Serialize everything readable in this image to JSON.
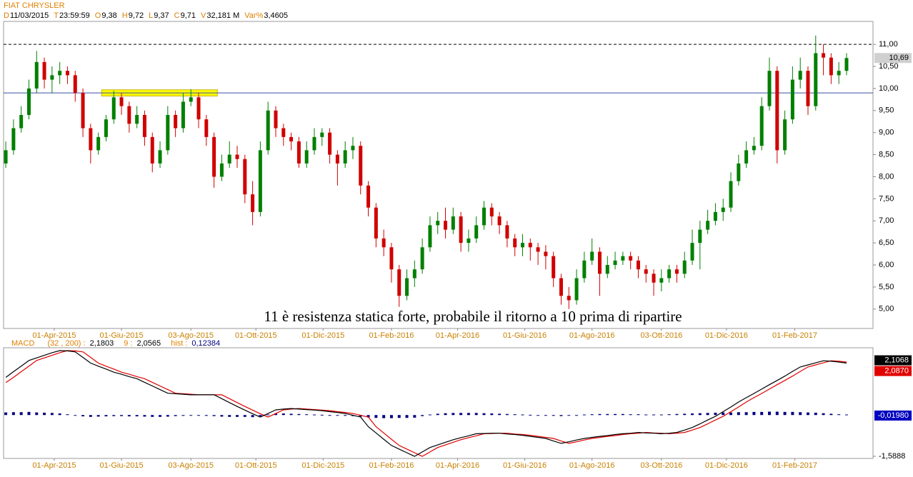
{
  "header": {
    "title": "FIAT CHRYSLER",
    "fields": [
      {
        "key": "D",
        "value": "11/03/2015"
      },
      {
        "key": "T",
        "value": "23:59:59"
      },
      {
        "key": "O",
        "value": "9,38"
      },
      {
        "key": "H",
        "value": "9,72"
      },
      {
        "key": "L",
        "value": "9,37"
      },
      {
        "key": "C",
        "value": "9,71"
      },
      {
        "key": "V",
        "value": "32,181 M"
      },
      {
        "key": "Var%",
        "value": "3,4605"
      }
    ]
  },
  "chart_data": [
    {
      "type": "candlestick",
      "annotation": "11 è resistenza statica forte, probabile il ritorno a 10 prima di ripartire",
      "up_color": "#008000",
      "down_color": "#d00000",
      "x": [
        "2015-02-16",
        "2015-02-23",
        "2015-03-02",
        "2015-03-09",
        "2015-03-16",
        "2015-03-23",
        "2015-03-30",
        "2015-04-06",
        "2015-04-13",
        "2015-04-20",
        "2015-04-27",
        "2015-05-04",
        "2015-05-11",
        "2015-05-18",
        "2015-05-25",
        "2015-06-01",
        "2015-06-08",
        "2015-06-15",
        "2015-06-22",
        "2015-06-29",
        "2015-07-06",
        "2015-07-13",
        "2015-07-20",
        "2015-07-27",
        "2015-08-03",
        "2015-08-10",
        "2015-08-17",
        "2015-08-24",
        "2015-08-31",
        "2015-09-07",
        "2015-09-14",
        "2015-09-21",
        "2015-09-28",
        "2015-10-05",
        "2015-10-12",
        "2015-10-19",
        "2015-10-26",
        "2015-11-02",
        "2015-11-09",
        "2015-11-16",
        "2015-11-23",
        "2015-11-30",
        "2015-12-07",
        "2015-12-14",
        "2015-12-21",
        "2015-12-28",
        "2016-01-04",
        "2016-01-11",
        "2016-01-18",
        "2016-01-25",
        "2016-02-01",
        "2016-02-08",
        "2016-02-15",
        "2016-02-22",
        "2016-02-29",
        "2016-03-07",
        "2016-03-14",
        "2016-03-21",
        "2016-03-28",
        "2016-04-04",
        "2016-04-11",
        "2016-04-18",
        "2016-04-25",
        "2016-05-02",
        "2016-05-09",
        "2016-05-16",
        "2016-05-23",
        "2016-05-30",
        "2016-06-06",
        "2016-06-13",
        "2016-06-20",
        "2016-06-27",
        "2016-07-04",
        "2016-07-11",
        "2016-07-18",
        "2016-07-25",
        "2016-08-01",
        "2016-08-08",
        "2016-08-15",
        "2016-08-22",
        "2016-08-29",
        "2016-09-05",
        "2016-09-12",
        "2016-09-19",
        "2016-09-26",
        "2016-10-03",
        "2016-10-10",
        "2016-10-17",
        "2016-10-24",
        "2016-10-31",
        "2016-11-07",
        "2016-11-14",
        "2016-11-21",
        "2016-11-28",
        "2016-12-05",
        "2016-12-12",
        "2016-12-19",
        "2016-12-26",
        "2017-01-02",
        "2017-01-09",
        "2017-01-16",
        "2017-01-23",
        "2017-01-30",
        "2017-02-06",
        "2017-02-13",
        "2017-02-20",
        "2017-02-27",
        "2017-03-06",
        "2017-03-13",
        "2017-03-20"
      ],
      "open": [
        8.3,
        8.6,
        9.1,
        9.4,
        10.0,
        10.6,
        10.2,
        10.3,
        10.4,
        10.3,
        9.9,
        9.1,
        8.6,
        8.9,
        9.3,
        9.8,
        9.6,
        9.2,
        9.4,
        8.9,
        8.3,
        8.6,
        9.4,
        9.1,
        9.7,
        9.8,
        9.3,
        8.9,
        8.0,
        8.3,
        8.5,
        8.4,
        7.6,
        7.2,
        8.6,
        9.5,
        9.1,
        8.9,
        8.8,
        8.3,
        8.6,
        8.9,
        9.0,
        8.5,
        8.3,
        8.6,
        8.7,
        7.8,
        7.3,
        6.6,
        6.4,
        5.9,
        5.3,
        5.7,
        5.9,
        6.4,
        6.9,
        7.0,
        6.8,
        7.1,
        6.5,
        6.6,
        6.9,
        7.3,
        7.1,
        6.9,
        6.6,
        6.4,
        6.5,
        6.4,
        6.3,
        6.2,
        5.7,
        5.3,
        5.2,
        5.7,
        6.1,
        6.3,
        5.8,
        6.0,
        6.1,
        6.2,
        6.1,
        5.9,
        5.8,
        5.6,
        5.7,
        5.9,
        5.8,
        6.1,
        6.5,
        6.8,
        7.0,
        7.2,
        7.3,
        7.9,
        8.3,
        8.6,
        8.7,
        9.6,
        10.4,
        8.6,
        9.3,
        10.2,
        10.4,
        9.6,
        10.8,
        10.7,
        10.3,
        10.4
      ],
      "high": [
        8.8,
        9.3,
        9.6,
        10.2,
        10.85,
        10.7,
        10.5,
        10.6,
        10.5,
        10.4,
        10.0,
        9.2,
        9.0,
        9.4,
        9.95,
        9.9,
        9.7,
        9.6,
        9.5,
        9.0,
        8.8,
        9.6,
        9.5,
        9.9,
        9.98,
        9.9,
        9.4,
        9.0,
        8.5,
        8.8,
        8.7,
        8.5,
        7.9,
        8.8,
        9.7,
        9.6,
        9.2,
        9.0,
        8.9,
        8.8,
        9.1,
        9.1,
        9.1,
        8.6,
        8.8,
        8.9,
        8.8,
        7.9,
        7.4,
        6.8,
        6.5,
        6.0,
        5.9,
        6.1,
        6.6,
        7.1,
        7.2,
        7.3,
        7.3,
        7.2,
        6.8,
        7.1,
        7.45,
        7.4,
        7.2,
        7.0,
        6.7,
        6.7,
        6.6,
        6.5,
        6.45,
        6.3,
        5.8,
        5.5,
        5.9,
        6.3,
        6.6,
        6.4,
        6.2,
        6.3,
        6.3,
        6.3,
        6.2,
        6.0,
        5.9,
        5.9,
        6.0,
        6.0,
        6.3,
        6.8,
        7.0,
        7.25,
        7.4,
        7.5,
        8.1,
        8.5,
        8.8,
        8.9,
        9.8,
        10.7,
        10.5,
        9.5,
        10.5,
        10.7,
        10.5,
        11.2,
        11.0,
        10.8,
        10.6,
        10.8
      ],
      "low": [
        8.2,
        8.5,
        9.0,
        9.3,
        9.9,
        10.0,
        9.9,
        10.1,
        10.1,
        9.7,
        8.9,
        8.3,
        8.5,
        8.8,
        9.2,
        9.4,
        9.0,
        9.1,
        8.7,
        8.1,
        8.2,
        8.5,
        8.9,
        9.0,
        9.6,
        9.1,
        8.7,
        7.75,
        7.9,
        8.2,
        8.2,
        7.4,
        6.9,
        7.1,
        8.5,
        8.9,
        8.7,
        8.6,
        8.2,
        8.2,
        8.5,
        8.7,
        8.3,
        7.8,
        8.2,
        8.4,
        7.6,
        7.1,
        6.4,
        6.2,
        5.6,
        5.05,
        5.2,
        5.5,
        5.8,
        6.3,
        6.7,
        6.6,
        6.7,
        6.3,
        6.3,
        6.5,
        6.8,
        6.9,
        6.7,
        6.4,
        6.2,
        6.2,
        6.1,
        6.0,
        5.9,
        5.5,
        5.1,
        5.0,
        5.1,
        5.6,
        6.0,
        5.3,
        5.7,
        5.9,
        6.0,
        5.9,
        5.7,
        5.6,
        5.3,
        5.4,
        5.6,
        5.6,
        5.7,
        6.0,
        5.9,
        6.7,
        6.9,
        7.0,
        7.2,
        7.8,
        8.2,
        8.5,
        8.6,
        9.5,
        8.3,
        8.5,
        9.2,
        10.0,
        9.4,
        9.5,
        10.3,
        10.1,
        10.1,
        10.3
      ],
      "close": [
        8.6,
        9.1,
        9.4,
        10.0,
        10.6,
        10.2,
        10.3,
        10.4,
        10.3,
        9.9,
        9.1,
        8.6,
        8.9,
        9.3,
        9.8,
        9.6,
        9.2,
        9.4,
        8.9,
        8.3,
        8.6,
        9.4,
        9.1,
        9.7,
        9.8,
        9.3,
        8.9,
        8.0,
        8.3,
        8.5,
        8.4,
        7.6,
        7.2,
        8.6,
        9.5,
        9.1,
        8.9,
        8.8,
        8.3,
        8.6,
        8.9,
        9.0,
        8.5,
        8.3,
        8.6,
        8.7,
        7.8,
        7.3,
        6.6,
        6.4,
        5.9,
        5.3,
        5.7,
        5.9,
        6.4,
        6.9,
        7.0,
        6.8,
        7.1,
        6.5,
        6.6,
        6.9,
        7.3,
        7.1,
        6.9,
        6.6,
        6.4,
        6.5,
        6.4,
        6.3,
        6.2,
        5.7,
        5.3,
        5.2,
        5.7,
        6.1,
        6.3,
        5.8,
        6.0,
        6.1,
        6.2,
        6.1,
        5.9,
        5.8,
        5.6,
        5.7,
        5.9,
        5.8,
        6.1,
        6.5,
        6.8,
        7.0,
        7.2,
        7.3,
        7.9,
        8.3,
        8.6,
        8.7,
        9.6,
        10.4,
        8.6,
        9.3,
        10.2,
        10.4,
        9.6,
        10.8,
        10.7,
        10.3,
        10.4,
        10.69
      ],
      "xlim": [
        "2015-02-14",
        "2017-04-13"
      ],
      "xticks": [
        {
          "value": "2015-04-01",
          "label": "01-Apr-2015"
        },
        {
          "value": "2015-06-01",
          "label": "01-Giu-2015"
        },
        {
          "value": "2015-08-03",
          "label": "03-Ago-2015"
        },
        {
          "value": "2015-10-01",
          "label": "01-Ott-2015"
        },
        {
          "value": "2015-12-01",
          "label": "01-Dic-2015"
        },
        {
          "value": "2016-02-01",
          "label": "01-Feb-2016"
        },
        {
          "value": "2016-04-01",
          "label": "01-Apr-2016"
        },
        {
          "value": "2016-06-01",
          "label": "01-Giu-2016"
        },
        {
          "value": "2016-08-01",
          "label": "01-Ago-2016"
        },
        {
          "value": "2016-10-03",
          "label": "03-Ott-2016"
        },
        {
          "value": "2016-12-01",
          "label": "01-Dic-2016"
        },
        {
          "value": "2017-02-01",
          "label": "01-Feb-2017"
        }
      ],
      "ylim": [
        4.56,
        11.52
      ],
      "yticks": [
        {
          "value": 5,
          "label": "5,00"
        },
        {
          "value": 5.5,
          "label": "5,50"
        },
        {
          "value": 6,
          "label": "6,00"
        },
        {
          "value": 6.5,
          "label": "6,50"
        },
        {
          "value": 7,
          "label": "7,00"
        },
        {
          "value": 7.5,
          "label": "7,50"
        },
        {
          "value": 8,
          "label": "8,00"
        },
        {
          "value": 8.5,
          "label": "8,50"
        },
        {
          "value": 9,
          "label": "9,00"
        },
        {
          "value": 9.5,
          "label": "9,50"
        },
        {
          "value": 10,
          "label": "10,00"
        },
        {
          "value": 10.5,
          "label": "10,50"
        },
        {
          "value": 11,
          "label": "11,00"
        }
      ],
      "hlines": [
        {
          "value": 11,
          "color": "#000000",
          "dashed": true
        },
        {
          "value": 9.9,
          "color": "#3a4fa0",
          "dashed": false
        }
      ],
      "highlight": {
        "x": [
          "2015-05-14",
          "2015-08-27"
        ],
        "y": [
          9.83,
          9.97
        ],
        "color": "#ffff00"
      },
      "tags": [
        {
          "value": 10.69,
          "label": "10,69",
          "bg": "#d0d0d0",
          "fg": "#000000"
        }
      ]
    },
    {
      "type": "macd",
      "title": "MACD",
      "legend": [
        {
          "label": "(32 , 200) :",
          "value": "2,1803",
          "color": "#000000"
        },
        {
          "label": "9 :",
          "value": "2,0565",
          "color": "#000000"
        },
        {
          "label": "hist :",
          "value": "0,12384",
          "color": "#000080"
        }
      ],
      "series": [
        {
          "color": "#000000",
          "values": [
            1.45,
            1.67,
            1.88,
            2.1,
            2.2,
            2.3,
            2.4,
            2.48,
            2.47,
            2.43,
            2.22,
            2.0,
            1.88,
            1.77,
            1.65,
            1.57,
            1.48,
            1.4,
            1.26,
            1.12,
            0.98,
            0.84,
            0.82,
            0.8,
            0.78,
            0.78,
            0.78,
            0.78,
            0.63,
            0.48,
            0.33,
            0.19,
            0.05,
            -0.08,
            0.06,
            0.2,
            0.23,
            0.25,
            0.23,
            0.21,
            0.19,
            0.17,
            0.13,
            0.1,
            0.06,
            -0.01,
            -0.08,
            -0.45,
            -0.69,
            -0.93,
            -1.17,
            -1.31,
            -1.45,
            -1.59,
            -1.42,
            -1.25,
            -1.15,
            -1.05,
            -0.95,
            -0.87,
            -0.8,
            -0.72,
            -0.71,
            -0.7,
            -0.7,
            -0.73,
            -0.75,
            -0.78,
            -0.82,
            -0.86,
            -0.9,
            -1.0,
            -1.09,
            -1.03,
            -0.96,
            -0.9,
            -0.86,
            -0.82,
            -0.79,
            -0.75,
            -0.72,
            -0.7,
            -0.67,
            -0.69,
            -0.7,
            -0.72,
            -0.7,
            -0.67,
            -0.58,
            -0.48,
            -0.34,
            -0.19,
            -0.05,
            0.13,
            0.31,
            0.5,
            0.67,
            0.83,
            1.0,
            1.17,
            1.33,
            1.5,
            1.68,
            1.85,
            1.93,
            2.01,
            2.09,
            2.07,
            2.04,
            2.0
          ]
        },
        {
          "color": "#e00000",
          "values": [
            1.25,
            1.45,
            1.67,
            1.88,
            2.1,
            2.2,
            2.3,
            2.4,
            2.48,
            2.47,
            2.43,
            2.22,
            2.0,
            1.88,
            1.77,
            1.65,
            1.57,
            1.48,
            1.4,
            1.26,
            1.12,
            0.98,
            0.84,
            0.82,
            0.8,
            0.78,
            0.78,
            0.78,
            0.78,
            0.63,
            0.48,
            0.33,
            0.19,
            0.05,
            -0.08,
            0.06,
            0.2,
            0.23,
            0.25,
            0.23,
            0.21,
            0.19,
            0.17,
            0.13,
            0.1,
            0.06,
            -0.01,
            -0.08,
            -0.45,
            -0.69,
            -0.93,
            -1.17,
            -1.31,
            -1.45,
            -1.59,
            -1.42,
            -1.25,
            -1.15,
            -1.05,
            -0.95,
            -0.87,
            -0.8,
            -0.72,
            -0.71,
            -0.7,
            -0.7,
            -0.73,
            -0.75,
            -0.78,
            -0.82,
            -0.86,
            -0.9,
            -1.0,
            -1.09,
            -1.03,
            -0.96,
            -0.9,
            -0.86,
            -0.82,
            -0.79,
            -0.75,
            -0.72,
            -0.7,
            -0.67,
            -0.69,
            -0.7,
            -0.72,
            -0.7,
            -0.67,
            -0.58,
            -0.48,
            -0.34,
            -0.19,
            -0.05,
            0.13,
            0.31,
            0.5,
            0.67,
            0.83,
            1.0,
            1.17,
            1.33,
            1.5,
            1.68,
            1.85,
            1.93,
            2.01,
            2.09,
            2.07,
            2.04
          ]
        },
        {
          "color": "#000080",
          "values": [
            0.1,
            0.11,
            0.11,
            0.12,
            0.1,
            0.09,
            0.08,
            0.06,
            0.03,
            0.0,
            -0.05,
            -0.07,
            -0.06,
            -0.05,
            -0.04,
            -0.04,
            -0.05,
            -0.05,
            -0.06,
            -0.07,
            -0.07,
            -0.06,
            -0.04,
            -0.03,
            -0.02,
            -0.02,
            -0.03,
            -0.04,
            -0.06,
            -0.07,
            -0.07,
            -0.07,
            -0.08,
            -0.05,
            0.02,
            0.06,
            0.06,
            0.05,
            0.04,
            0.03,
            0.02,
            0.01,
            0.0,
            -0.01,
            -0.03,
            -0.04,
            -0.06,
            -0.09,
            -0.11,
            -0.12,
            -0.12,
            -0.11,
            -0.11,
            -0.1,
            -0.04,
            0.02,
            0.05,
            0.07,
            0.08,
            0.08,
            0.08,
            0.08,
            0.07,
            0.06,
            0.05,
            0.04,
            0.03,
            0.02,
            0.01,
            0.0,
            -0.02,
            -0.03,
            -0.04,
            -0.02,
            0.0,
            0.02,
            0.03,
            0.04,
            0.04,
            0.04,
            0.04,
            0.03,
            0.03,
            0.02,
            0.02,
            0.02,
            0.03,
            0.04,
            0.05,
            0.06,
            0.07,
            0.08,
            0.09,
            0.1,
            0.1,
            0.11,
            0.11,
            0.12,
            0.12,
            0.13,
            0.13,
            0.12,
            0.12,
            0.11,
            0.1,
            0.09,
            0.07,
            0.05,
            0.03,
            0.02
          ]
        }
      ],
      "ylim": [
        -1.67,
        2.59
      ],
      "yticks": [
        {
          "value": -1.5888,
          "label": "-1,5888"
        }
      ],
      "tags": [
        {
          "value": 2.1068,
          "label": "2,1068",
          "bg": "#000000",
          "fg": "#ffffff"
        },
        {
          "value": 2.087,
          "label": "2,0870",
          "bg": "#e00000",
          "fg": "#ffffff"
        },
        {
          "value": -0.0198,
          "label": "-0,01980",
          "bg": "#0000c0",
          "fg": "#ffffff"
        }
      ]
    }
  ]
}
